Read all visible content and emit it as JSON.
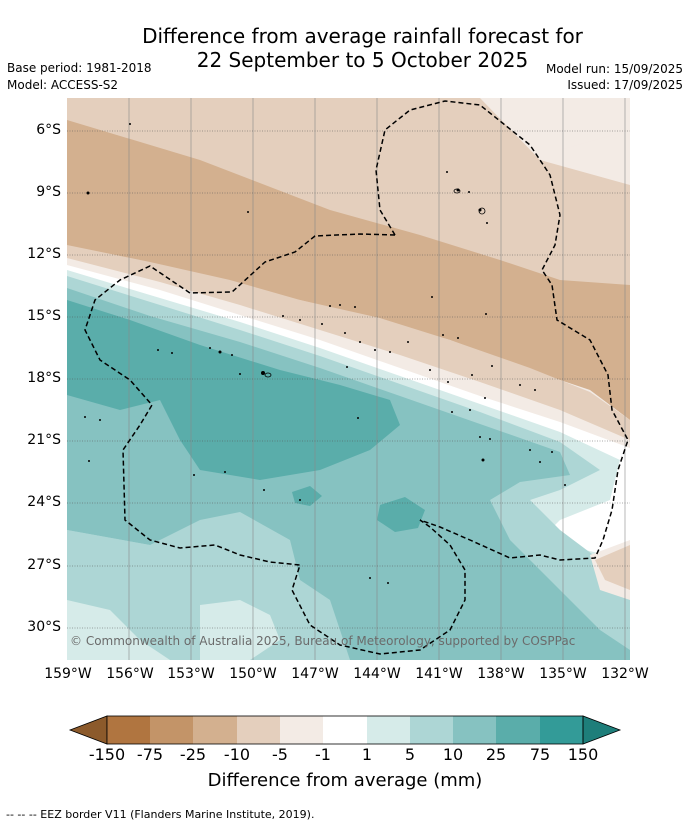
{
  "header": {
    "title_line1": "Difference from average rainfall forecast for",
    "title_line2": "22 September to 5 October 2025",
    "base_period": "Base period: 1981-2018",
    "model": "Model: ACCESS-S2",
    "model_run": "Model run: 15/09/2025",
    "issued": "Issued: 17/09/2025"
  },
  "map": {
    "lat_labels": [
      "6°S",
      "9°S",
      "12°S",
      "15°S",
      "18°S",
      "21°S",
      "24°S",
      "27°S",
      "30°S"
    ],
    "lon_labels": [
      "159°W",
      "156°W",
      "153°W",
      "150°W",
      "147°W",
      "144°W",
      "141°W",
      "138°W",
      "135°W",
      "132°W"
    ],
    "copyright": "© Commonwealth of Australia 2025, Bureau of Meteorology, supported by COSPPac"
  },
  "colorbar": {
    "ticks": [
      "-150",
      "-75",
      "-25",
      "-10",
      "-5",
      "-1",
      "1",
      "5",
      "10",
      "25",
      "75",
      "150"
    ],
    "colors": [
      "#8c5a2b",
      "#b07540",
      "#c39468",
      "#d3b08f",
      "#e4cfbd",
      "#f3ebe5",
      "#ffffff",
      "#d6ebe9",
      "#add6d5",
      "#86c2c1",
      "#5aadaa",
      "#339b98",
      "#1e7e7a"
    ],
    "title": "Difference from average (mm)"
  },
  "footnote": "-- -- -- EEZ border V11 (Flanders Marine Institute, 2019)."
}
